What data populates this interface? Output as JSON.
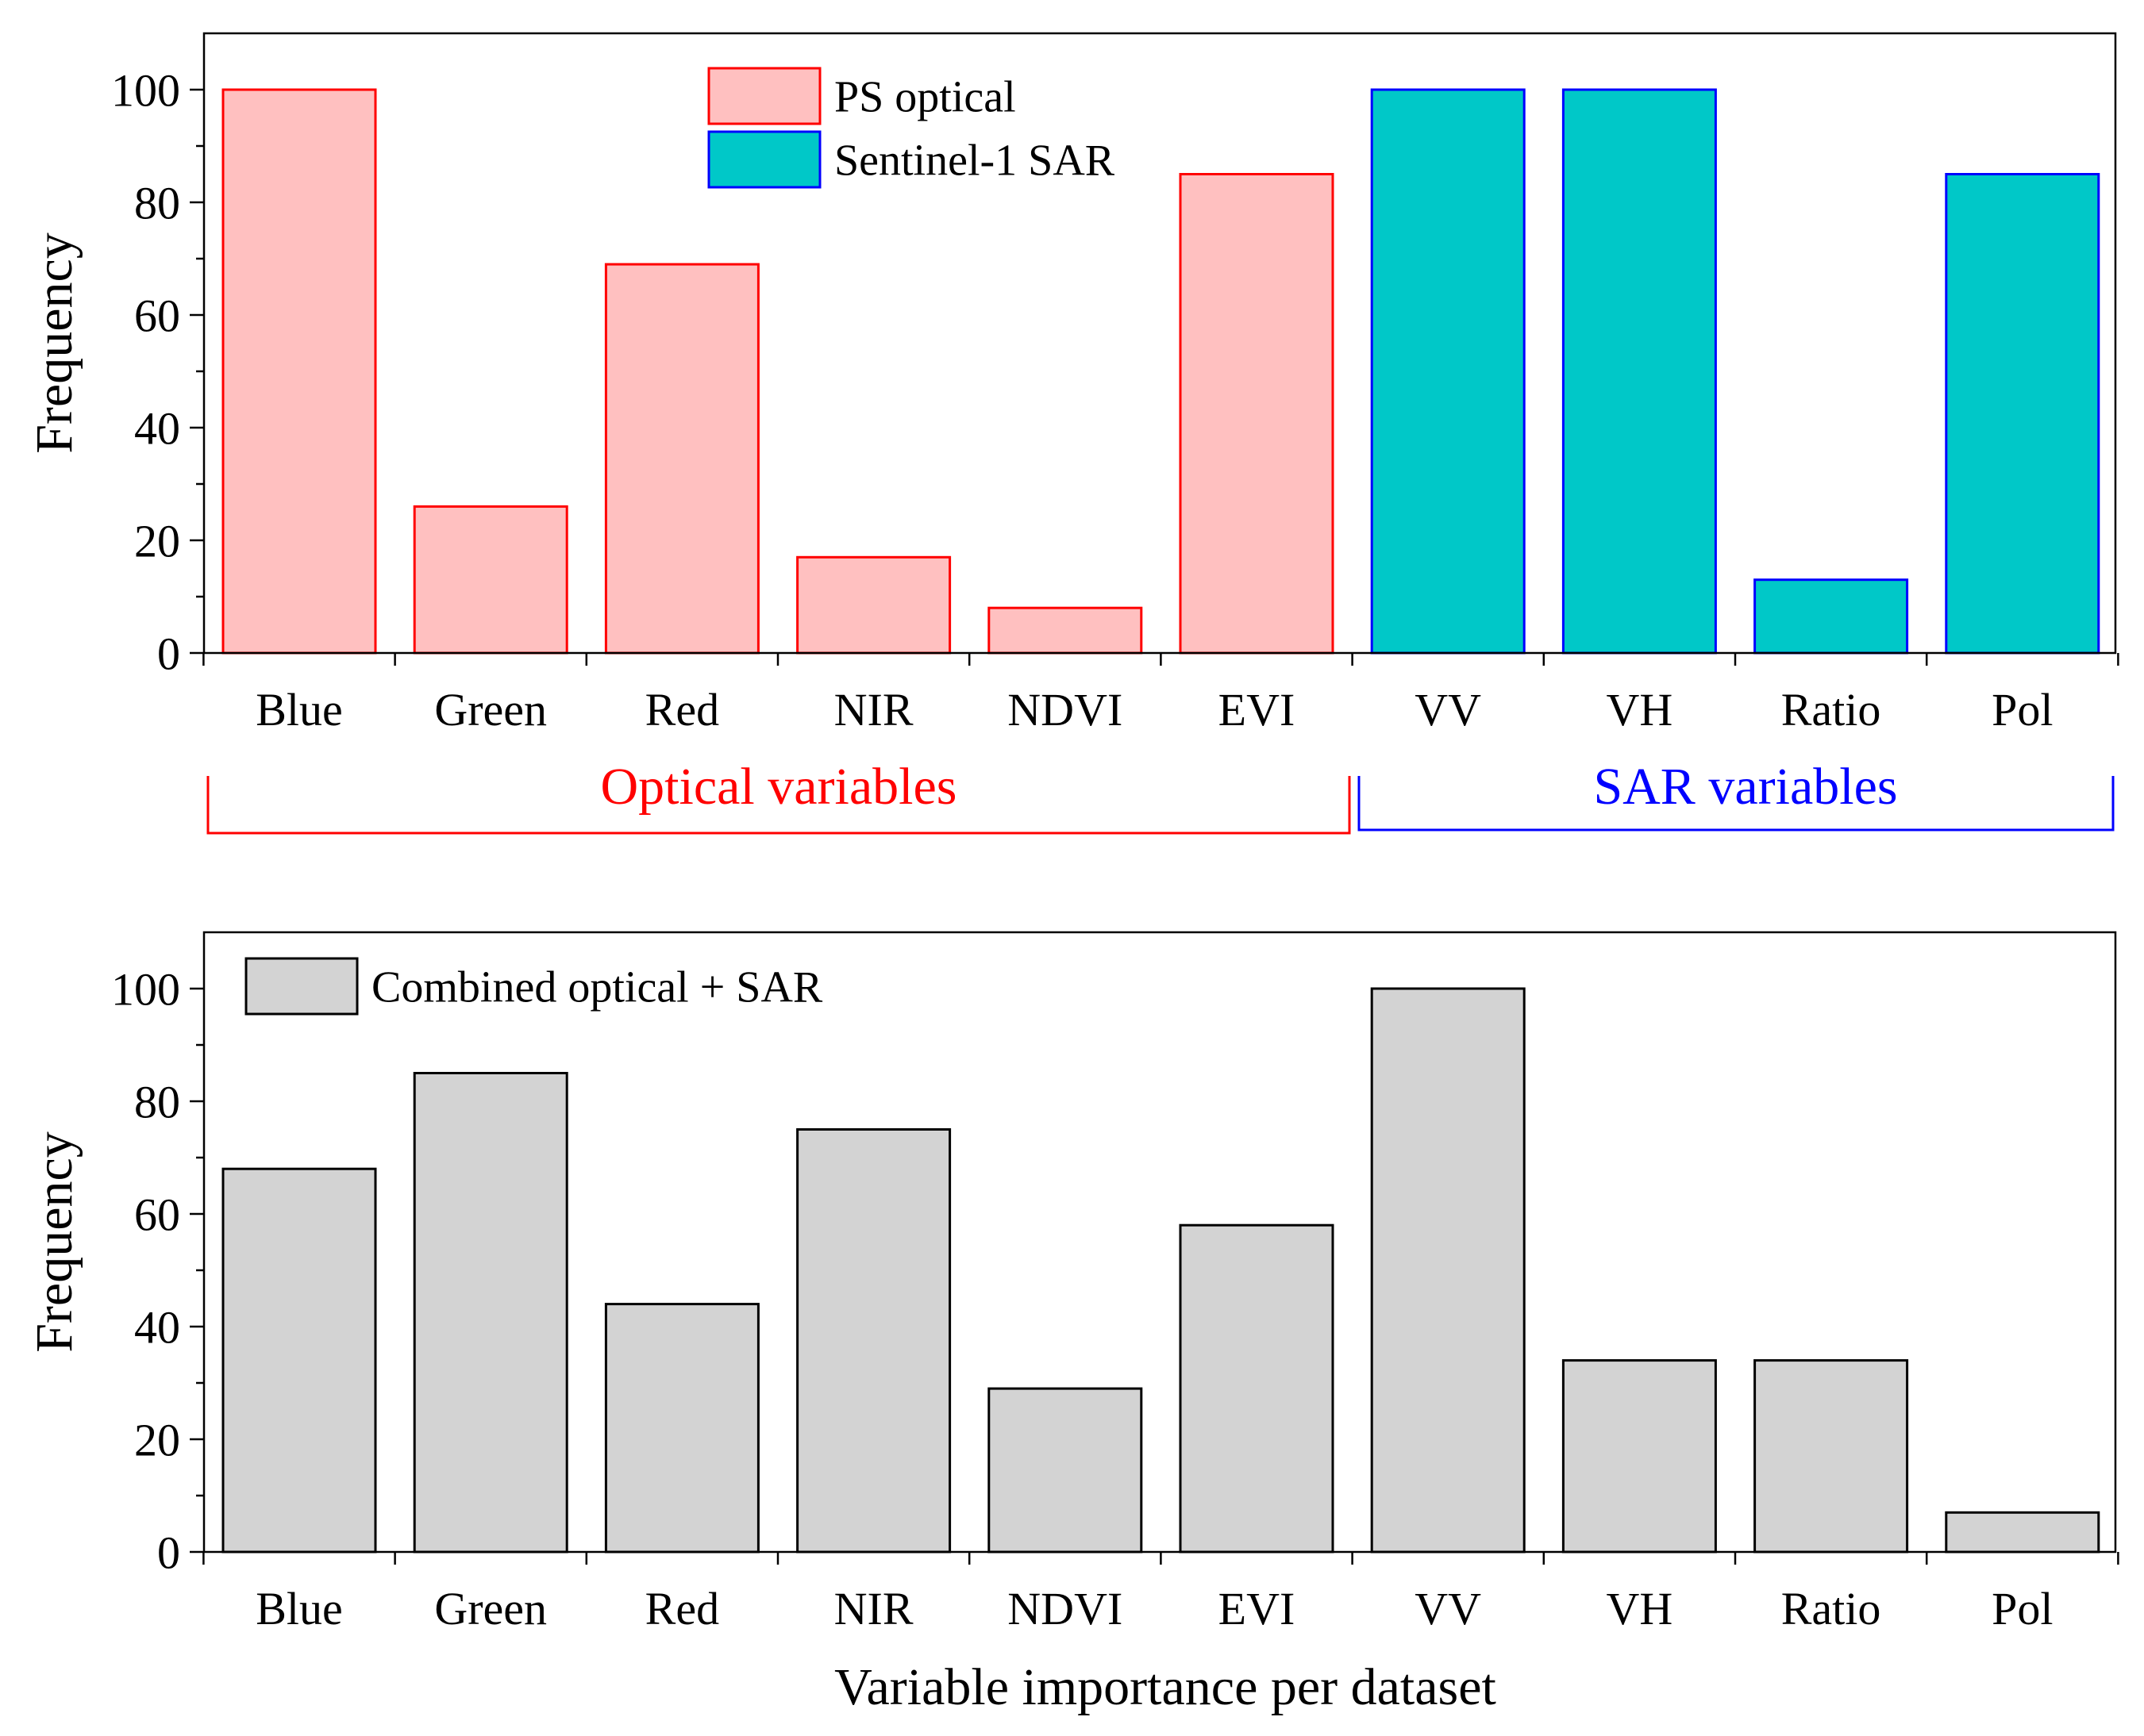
{
  "chart_data": [
    {
      "type": "bar",
      "categories": [
        "Blue",
        "Green",
        "Red",
        "NIR",
        "NDVI",
        "EVI",
        "VV",
        "VH",
        "Ratio",
        "Pol"
      ],
      "series": [
        {
          "name": "PS optical",
          "values": [
            100,
            26,
            69,
            17,
            8,
            85,
            null,
            null,
            null,
            null
          ],
          "fill": "#ffc0c0",
          "stroke": "#ff0000"
        },
        {
          "name": "Sentinel-1 SAR",
          "values": [
            null,
            null,
            null,
            null,
            null,
            null,
            100,
            100,
            13,
            85
          ],
          "fill": "#00c8c8",
          "stroke": "#0000ff"
        }
      ],
      "title": "",
      "xlabel": "",
      "ylabel": "Frequency",
      "ylim": [
        0,
        110
      ],
      "yticks": [
        0,
        20,
        40,
        60,
        80,
        100
      ],
      "grid": false,
      "legend_position": "top-center",
      "groups": [
        {
          "label": "Optical variables",
          "color": "#ff0000",
          "from": 0,
          "to": 5
        },
        {
          "label": "SAR variables",
          "color": "#0000ff",
          "from": 6,
          "to": 9
        }
      ]
    },
    {
      "type": "bar",
      "categories": [
        "Blue",
        "Green",
        "Red",
        "NIR",
        "NDVI",
        "EVI",
        "VV",
        "VH",
        "Ratio",
        "Pol"
      ],
      "series": [
        {
          "name": "Combined optical + SAR",
          "values": [
            68,
            85,
            44,
            75,
            29,
            58,
            100,
            34,
            34,
            7
          ],
          "fill": "#d3d3d3",
          "stroke": "#000000"
        }
      ],
      "title": "",
      "xlabel": "Variable importance per dataset",
      "ylabel": "Frequency",
      "ylim": [
        0,
        110
      ],
      "yticks": [
        0,
        20,
        40,
        60,
        80,
        100
      ],
      "grid": false,
      "legend_position": "top-left"
    }
  ]
}
